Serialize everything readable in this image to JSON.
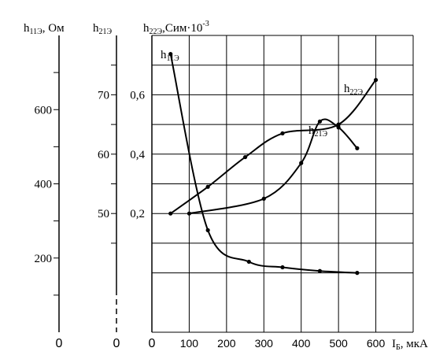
{
  "chart_data": {
    "type": "line",
    "x_axis": {
      "label_main": "I",
      "label_sub": "Б",
      "label_unit": ", мкА",
      "ticks": [
        0,
        100,
        200,
        300,
        400,
        500,
        600
      ],
      "range": [
        0,
        600
      ]
    },
    "y_axes": [
      {
        "id": "h11",
        "label_main": "h",
        "label_sub": "11Э",
        "label_unit": ", Ом",
        "ticks": [
          {
            "value": 200,
            "label": "200"
          },
          {
            "value": 400,
            "label": "400"
          },
          {
            "value": 600,
            "label": "600"
          }
        ],
        "minor_ticks": [
          100,
          300,
          500,
          700
        ],
        "range": [
          0,
          800
        ],
        "zero_label": "0"
      },
      {
        "id": "h21",
        "label_main": "h",
        "label_sub": "21Э",
        "label_unit": "",
        "ticks": [
          {
            "value": 50,
            "label": "50"
          },
          {
            "value": 60,
            "label": "60"
          },
          {
            "value": 70,
            "label": "70"
          }
        ],
        "minor_ticks": [
          45,
          55,
          65,
          75
        ],
        "range": [
          30,
          80
        ],
        "zero_label": "0"
      },
      {
        "id": "h22",
        "label_main": "h",
        "label_sub": "22Э",
        "label_unit": ",Сим",
        "label_mult": "·10",
        "label_exp": "-3",
        "ticks": [
          {
            "value": 0.2,
            "label": "0,2"
          },
          {
            "value": 0.4,
            "label": "0,4"
          },
          {
            "value": 0.6,
            "label": "0,6"
          }
        ],
        "range": [
          -0.2,
          0.8
        ],
        "zero_label": "0"
      }
    ],
    "series": [
      {
        "name_main": "h",
        "name_sub": "11Э",
        "axis": "h11",
        "points": [
          [
            50,
            750
          ],
          [
            150,
            275
          ],
          [
            260,
            190
          ],
          [
            350,
            175
          ],
          [
            450,
            165
          ],
          [
            550,
            160
          ]
        ]
      },
      {
        "name_main": "h",
        "name_sub": "21Э",
        "axis": "h21",
        "points": [
          [
            100,
            50
          ],
          [
            300,
            52.5
          ],
          [
            400,
            58.5
          ],
          [
            450,
            65.5
          ],
          [
            500,
            64.5
          ],
          [
            550,
            61
          ]
        ]
      },
      {
        "name_main": "h",
        "name_sub": "22Э",
        "axis": "h22",
        "points": [
          [
            50,
            0.2
          ],
          [
            150,
            0.29
          ],
          [
            250,
            0.39
          ],
          [
            350,
            0.47
          ],
          [
            500,
            0.5
          ],
          [
            600,
            0.65
          ]
        ]
      }
    ],
    "grid": true
  }
}
